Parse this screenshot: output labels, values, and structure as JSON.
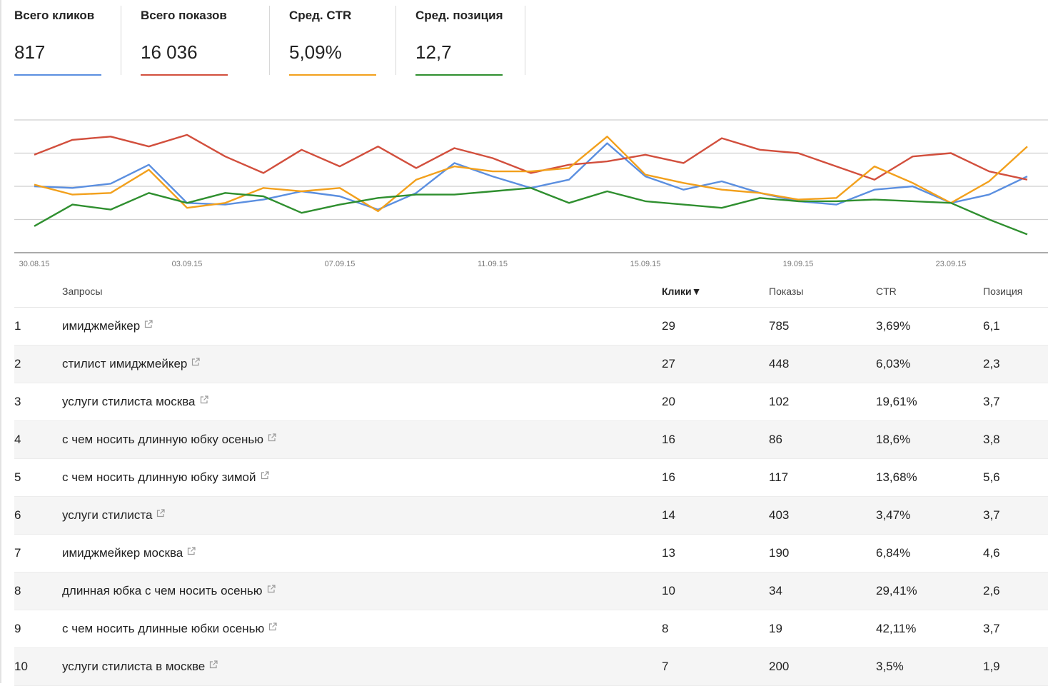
{
  "metrics": [
    {
      "label": "Всего кликов",
      "value": "817",
      "color": "#5b8fe0"
    },
    {
      "label": "Всего показов",
      "value": "16 036",
      "color": "#d24f3d"
    },
    {
      "label": "Сред. CTR",
      "value": "5,09%",
      "color": "#f2a01c"
    },
    {
      "label": "Сред. позиция",
      "value": "12,7",
      "color": "#2f8f2f"
    }
  ],
  "chart_data": {
    "type": "line",
    "x": [
      "30.08.15",
      "31.08.15",
      "01.09.15",
      "02.09.15",
      "03.09.15",
      "04.09.15",
      "05.09.15",
      "06.09.15",
      "07.09.15",
      "08.09.15",
      "09.09.15",
      "10.09.15",
      "11.09.15",
      "12.09.15",
      "13.09.15",
      "14.09.15",
      "15.09.15",
      "16.09.15",
      "17.09.15",
      "18.09.15",
      "19.09.15",
      "20.09.15",
      "21.09.15",
      "22.09.15",
      "23.09.15",
      "24.09.15",
      "25.09.15"
    ],
    "tick_labels": [
      "30.08.15",
      "03.09.15",
      "07.09.15",
      "11.09.15",
      "15.09.15",
      "19.09.15",
      "23.09.15"
    ],
    "series_values": [
      {
        "color": "#5b8fe0",
        "values": [
          2.0,
          1.95,
          2.08,
          2.65,
          1.5,
          1.45,
          1.6,
          1.85,
          1.7,
          1.3,
          1.8,
          2.7,
          2.3,
          1.95,
          2.2,
          3.3,
          2.3,
          1.9,
          2.15,
          1.8,
          1.55,
          1.45,
          1.9,
          2.0,
          1.5,
          1.75,
          2.3
        ]
      },
      {
        "color": "#d24f3d",
        "values": [
          2.95,
          3.4,
          3.5,
          3.2,
          3.55,
          2.9,
          2.4,
          3.1,
          2.6,
          3.2,
          2.55,
          3.15,
          2.85,
          2.4,
          2.65,
          2.75,
          2.95,
          2.7,
          3.45,
          3.1,
          3.0,
          2.6,
          2.2,
          2.9,
          3.0,
          2.45,
          2.2
        ]
      },
      {
        "color": "#f2a01c",
        "values": [
          2.05,
          1.75,
          1.8,
          2.5,
          1.35,
          1.5,
          1.95,
          1.85,
          1.95,
          1.25,
          2.2,
          2.6,
          2.45,
          2.45,
          2.55,
          3.5,
          2.35,
          2.1,
          1.9,
          1.8,
          1.6,
          1.65,
          2.6,
          2.1,
          1.5,
          2.15,
          3.2
        ]
      },
      {
        "color": "#2f8f2f",
        "values": [
          0.8,
          1.45,
          1.3,
          1.8,
          1.5,
          1.8,
          1.7,
          1.2,
          1.45,
          1.65,
          1.75,
          1.75,
          1.85,
          1.95,
          1.5,
          1.85,
          1.55,
          1.45,
          1.35,
          1.65,
          1.55,
          1.55,
          1.6,
          1.55,
          1.5,
          1.0,
          0.55
        ]
      }
    ],
    "grid": true,
    "ylim": [
      0,
      4
    ]
  },
  "table": {
    "headers": {
      "query": "Запросы",
      "clicks": "Клики▼",
      "impressions": "Показы",
      "ctr": "CTR",
      "position": "Позиция"
    },
    "rows": [
      {
        "n": "1",
        "query": "имиджмейкер",
        "clicks": "29",
        "impressions": "785",
        "ctr": "3,69%",
        "position": "6,1"
      },
      {
        "n": "2",
        "query": "стилист имиджмейкер",
        "clicks": "27",
        "impressions": "448",
        "ctr": "6,03%",
        "position": "2,3"
      },
      {
        "n": "3",
        "query": "услуги стилиста москва",
        "clicks": "20",
        "impressions": "102",
        "ctr": "19,61%",
        "position": "3,7"
      },
      {
        "n": "4",
        "query": "с чем носить длинную юбку осенью",
        "clicks": "16",
        "impressions": "86",
        "ctr": "18,6%",
        "position": "3,8"
      },
      {
        "n": "5",
        "query": "с чем носить длинную юбку зимой",
        "clicks": "16",
        "impressions": "117",
        "ctr": "13,68%",
        "position": "5,6"
      },
      {
        "n": "6",
        "query": "услуги стилиста",
        "clicks": "14",
        "impressions": "403",
        "ctr": "3,47%",
        "position": "3,7"
      },
      {
        "n": "7",
        "query": "имиджмейкер москва",
        "clicks": "13",
        "impressions": "190",
        "ctr": "6,84%",
        "position": "4,6"
      },
      {
        "n": "8",
        "query": "длинная юбка с чем носить осенью",
        "clicks": "10",
        "impressions": "34",
        "ctr": "29,41%",
        "position": "2,6"
      },
      {
        "n": "9",
        "query": "с чем носить длинные юбки осенью",
        "clicks": "8",
        "impressions": "19",
        "ctr": "42,11%",
        "position": "3,7"
      },
      {
        "n": "10",
        "query": "услуги стилиста в москве",
        "clicks": "7",
        "impressions": "200",
        "ctr": "3,5%",
        "position": "1,9"
      }
    ]
  },
  "icons": {
    "external_link": "external-link-icon"
  }
}
